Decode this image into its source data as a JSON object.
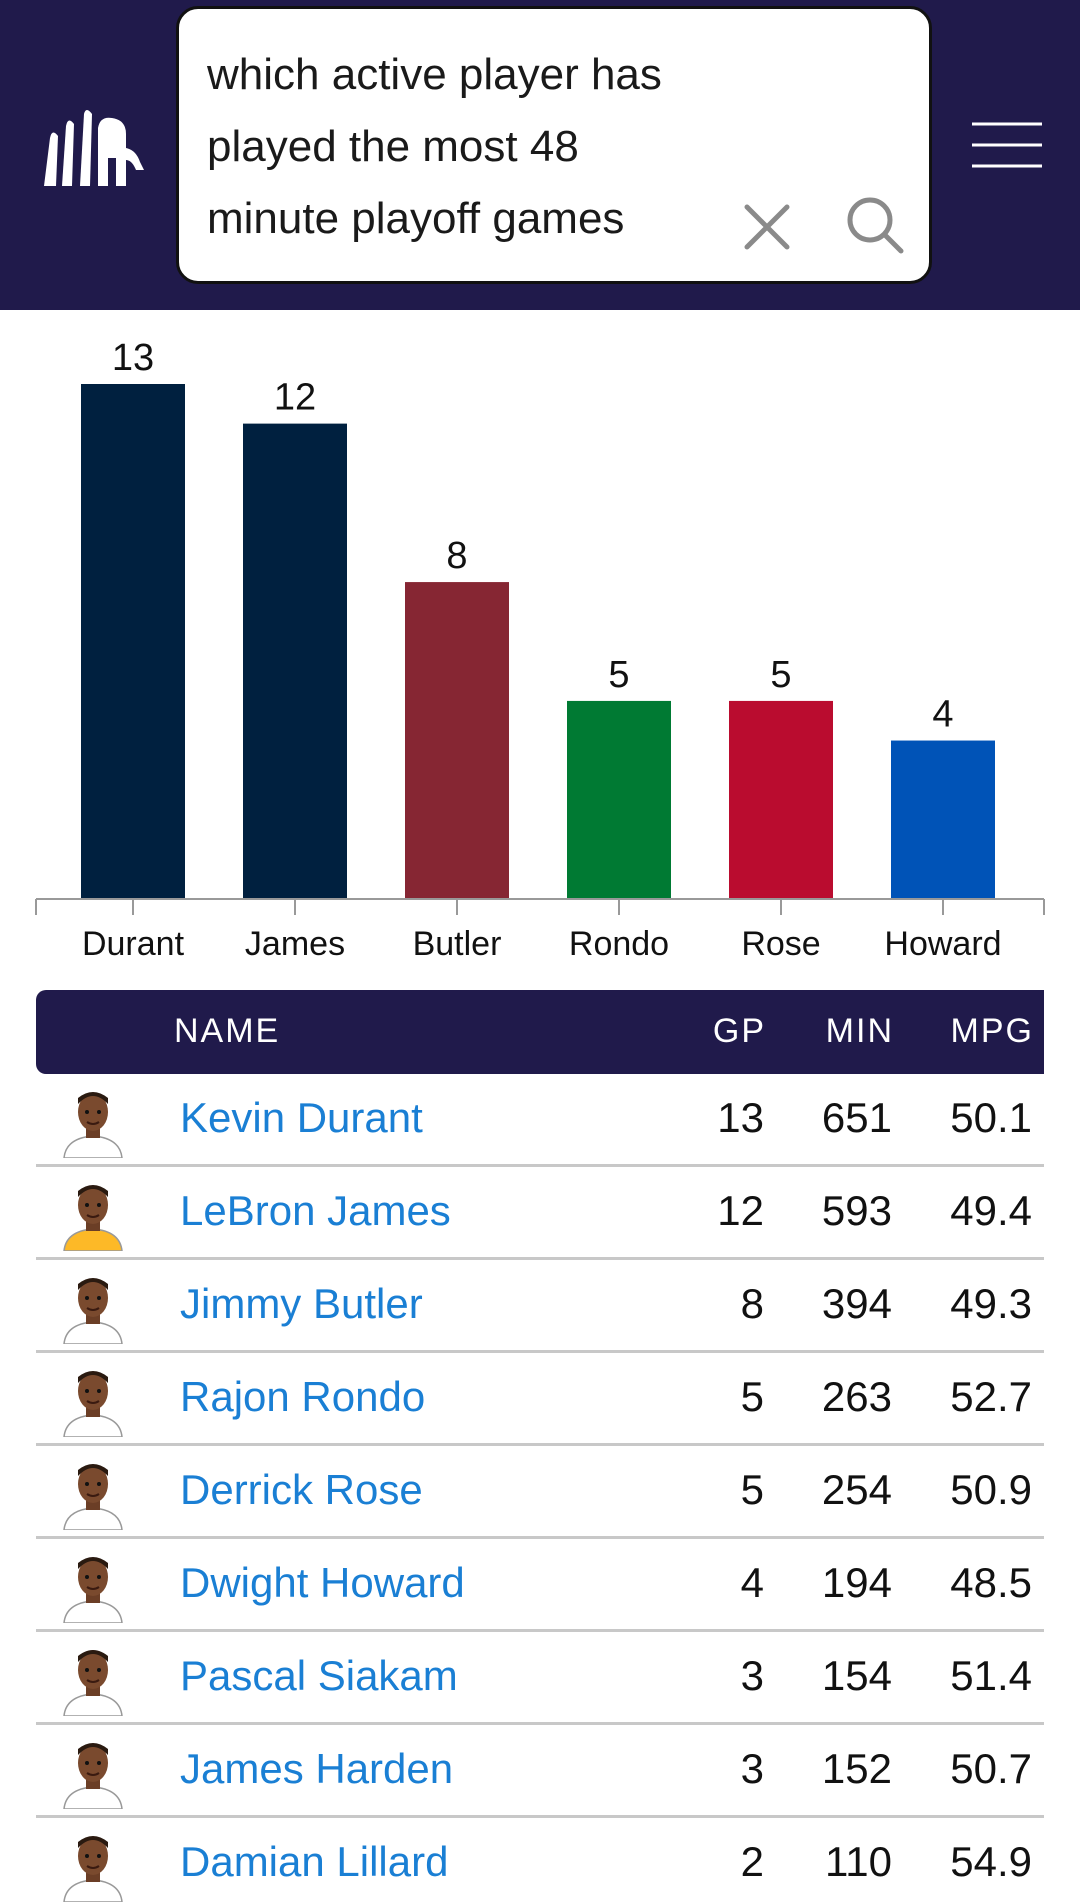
{
  "header": {
    "search_query": "which active player has played the most 48 minute playoff games",
    "logo_icon": "elephant-logo-icon",
    "clear_icon": "close-icon",
    "search_icon": "search-icon",
    "menu_icon": "hamburger-menu-icon",
    "background_color": "#201a4b"
  },
  "chart_data": {
    "type": "bar",
    "categories": [
      "Durant",
      "James",
      "Butler",
      "Rondo",
      "Rose",
      "Howard"
    ],
    "values": [
      13,
      12,
      8,
      5,
      5,
      4
    ],
    "colors": [
      "#00203f",
      "#00203f",
      "#862633",
      "#007a33",
      "#ba0c2f",
      "#0053b7"
    ],
    "ylim": [
      0,
      13
    ],
    "title": "",
    "xlabel": "",
    "ylabel": ""
  },
  "table": {
    "columns": [
      "NAME",
      "GP",
      "MIN",
      "MPG"
    ],
    "rows": [
      {
        "name": "Kevin Durant",
        "gp": "13",
        "min": "651",
        "mpg": "50.1",
        "jersey": "#ffffff"
      },
      {
        "name": "LeBron James",
        "gp": "12",
        "min": "593",
        "mpg": "49.4",
        "jersey": "#fdb927"
      },
      {
        "name": "Jimmy Butler",
        "gp": "8",
        "min": "394",
        "mpg": "49.3",
        "jersey": "#ffffff"
      },
      {
        "name": "Rajon Rondo",
        "gp": "5",
        "min": "263",
        "mpg": "52.7",
        "jersey": "#ffffff"
      },
      {
        "name": "Derrick Rose",
        "gp": "5",
        "min": "254",
        "mpg": "50.9",
        "jersey": "#ffffff"
      },
      {
        "name": "Dwight Howard",
        "gp": "4",
        "min": "194",
        "mpg": "48.5",
        "jersey": "#ffffff"
      },
      {
        "name": "Pascal Siakam",
        "gp": "3",
        "min": "154",
        "mpg": "51.4",
        "jersey": "#ffffff"
      },
      {
        "name": "James Harden",
        "gp": "3",
        "min": "152",
        "mpg": "50.7",
        "jersey": "#ffffff"
      },
      {
        "name": "Damian Lillard",
        "gp": "2",
        "min": "110",
        "mpg": "54.9",
        "jersey": "#ffffff"
      }
    ]
  }
}
